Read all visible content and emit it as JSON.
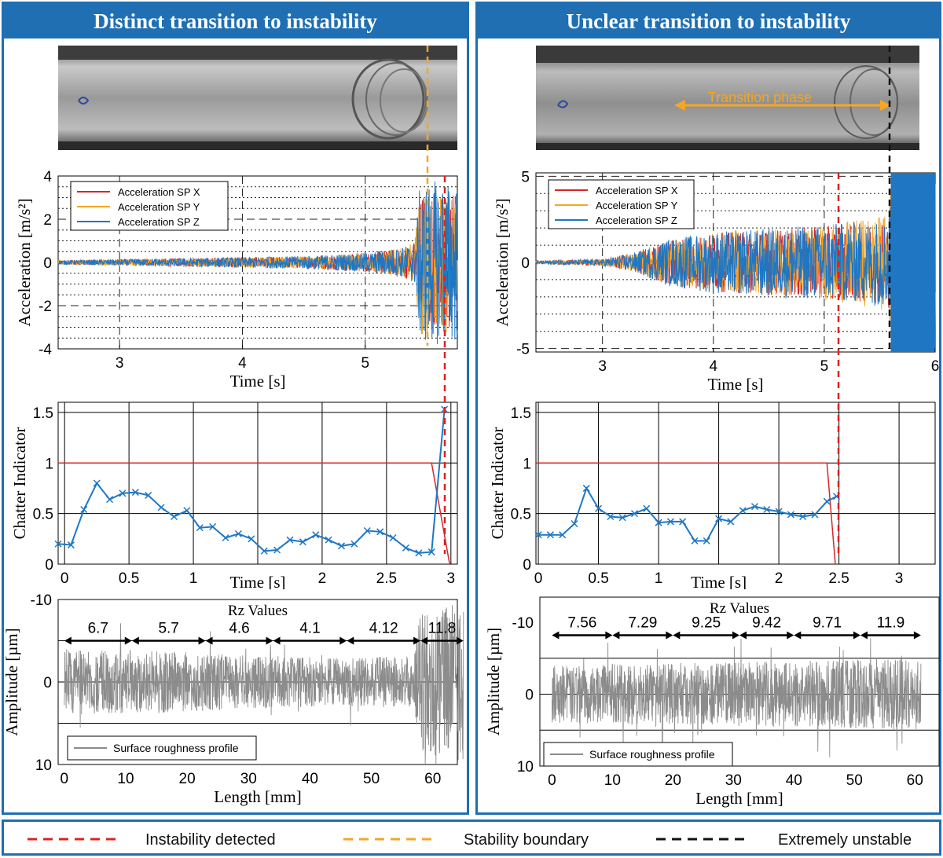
{
  "colors": {
    "accent": "#1f6fb2",
    "accel_x": "#d62728",
    "accel_y": "#f5a623",
    "accel_z": "#1f77c4",
    "chatter_line": "#1f77c4",
    "threshold": "#d62728",
    "profile": "#8c8c8c",
    "instability": "#e02020",
    "stability": "#f5a623",
    "unstable": "#111111"
  },
  "left": {
    "title": "Distinct transition to instability",
    "accel": {
      "ylabel": "Acceleration [m/s²]",
      "xlabel": "Time [s]",
      "ticks_x": [
        "3",
        "4",
        "5"
      ],
      "ticks_y": [
        "4",
        "2",
        "0",
        "-2",
        "-4"
      ],
      "legend": [
        "Acceleration SP X",
        "Acceleration SP Y",
        "Acceleration SP Z"
      ]
    },
    "chatter": {
      "ylabel": "Chatter Indicator",
      "xlabel": "Time [s]",
      "ticks_x": [
        "0",
        "0.5",
        "1",
        "",
        "2",
        "2.5",
        "3"
      ],
      "ticks_y": [
        "1.5",
        "1",
        "0.5",
        "0"
      ]
    },
    "rough": {
      "title": "Rz Values",
      "ylabel": "Amplitude [µm]",
      "xlabel": "Length [mm]",
      "ticks_x": [
        "0",
        "10",
        "20",
        "30",
        "40",
        "50",
        "60"
      ],
      "ticks_y": [
        "-10",
        "0",
        "10"
      ],
      "rz": [
        "6.7",
        "5.7",
        "4.6",
        "4.1",
        "4.12",
        "11.8"
      ],
      "legend": "Surface roughness profile"
    }
  },
  "right": {
    "title": "Unclear transition to instability",
    "photo_label": "Transition phase",
    "accel": {
      "ylabel": "Acceleration [m/s²]",
      "xlabel": "Time [s]",
      "ticks_x": [
        "3",
        "4",
        "5",
        "6"
      ],
      "ticks_y": [
        "5",
        "0",
        "-5"
      ],
      "legend": [
        "Acceleration SP X",
        "Acceleration SP Y",
        "Acceleration SP Z"
      ]
    },
    "chatter": {
      "ylabel": "Chatter Indicator",
      "xlabel": "Time [s]",
      "ticks_x": [
        "0",
        "0.5",
        "1",
        "",
        "2",
        "2.5",
        "3"
      ],
      "ticks_y": [
        "1.5",
        "1",
        "0.5",
        "0"
      ]
    },
    "rough": {
      "title": "Rz Values",
      "ylabel": "Amplitude [µm]",
      "xlabel": "Length [mm]",
      "ticks_x": [
        "0",
        "10",
        "20",
        "30",
        "40",
        "50",
        "60"
      ],
      "ticks_y": [
        "-10",
        "0",
        "10"
      ],
      "rz": [
        "7.56",
        "7.29",
        "9.25",
        "9.42",
        "9.71",
        "11.9"
      ],
      "legend": "Surface roughness profile"
    }
  },
  "bottom_legend": {
    "instability": "Instability detected",
    "stability": "Stability boundary",
    "unstable": "Extremely unstable"
  },
  "chart_data": [
    {
      "type": "line",
      "ylabel": "Acceleration [m/s²]",
      "xlabel": "Time [s]",
      "xlim": [
        2.5,
        5.75
      ],
      "ylim": [
        -4,
        4
      ],
      "series": [
        {
          "name": "Acceleration SP X",
          "envelope_x": [
            2.5,
            3.0,
            3.5,
            4.0,
            4.5,
            5.0,
            5.3,
            5.4,
            5.45,
            5.75
          ],
          "envelope_y": [
            0.1,
            0.15,
            0.2,
            0.25,
            0.3,
            0.45,
            0.7,
            1.0,
            3.5,
            3.5
          ]
        },
        {
          "name": "Acceleration SP Y",
          "envelope_x": [
            2.5,
            3.0,
            3.5,
            4.0,
            4.5,
            5.0,
            5.3,
            5.4,
            5.45,
            5.75
          ],
          "envelope_y": [
            0.1,
            0.15,
            0.2,
            0.25,
            0.3,
            0.45,
            0.7,
            1.0,
            3.5,
            3.5
          ]
        },
        {
          "name": "Acceleration SP Z",
          "envelope_x": [
            2.5,
            3.0,
            3.5,
            4.0,
            4.5,
            5.0,
            5.3,
            5.4,
            5.45,
            5.75
          ],
          "envelope_y": [
            0.1,
            0.15,
            0.2,
            0.25,
            0.3,
            0.45,
            0.7,
            1.0,
            3.8,
            3.8
          ]
        }
      ]
    },
    {
      "type": "line",
      "ylabel": "Chatter Indicator",
      "xlabel": "Time [s]",
      "xlim": [
        -0.05,
        3.05
      ],
      "ylim": [
        0,
        1.6
      ],
      "x": [
        -0.05,
        0.05,
        0.15,
        0.25,
        0.35,
        0.45,
        0.55,
        0.65,
        0.75,
        0.85,
        0.95,
        1.05,
        1.15,
        1.25,
        1.35,
        1.45,
        1.55,
        1.65,
        1.75,
        1.85,
        1.95,
        2.05,
        2.15,
        2.25,
        2.35,
        2.45,
        2.55,
        2.65,
        2.75,
        2.85,
        2.95
      ],
      "series": [
        {
          "values": [
            0.2,
            0.19,
            0.54,
            0.8,
            0.64,
            0.7,
            0.71,
            0.68,
            0.56,
            0.47,
            0.53,
            0.36,
            0.37,
            0.26,
            0.3,
            0.25,
            0.13,
            0.14,
            0.24,
            0.22,
            0.29,
            0.24,
            0.18,
            0.2,
            0.33,
            0.32,
            0.26,
            0.16,
            0.11,
            0.12,
            1.53
          ]
        }
      ],
      "threshold": {
        "x": [
          -0.05,
          2.85,
          2.99
        ],
        "y": [
          1,
          1,
          0
        ]
      }
    },
    {
      "type": "line",
      "title": "Rz Values",
      "ylabel": "Amplitude [µm]",
      "xlabel": "Length [mm]",
      "xlim": [
        -1,
        64
      ],
      "ylim": [
        -10,
        10
      ],
      "segments": [
        [
          0,
          11
        ],
        [
          11,
          23
        ],
        [
          23,
          34
        ],
        [
          34,
          46
        ],
        [
          46,
          58
        ],
        [
          58,
          65
        ]
      ],
      "rz": [
        6.7,
        5.7,
        4.6,
        4.1,
        4.12,
        11.8
      ],
      "series": [
        {
          "name": "Surface roughness profile"
        }
      ]
    },
    {
      "type": "line",
      "ylabel": "Acceleration [m/s²]",
      "xlabel": "Time [s]",
      "xlim": [
        2.4,
        6.0
      ],
      "ylim": [
        -5.2,
        5.2
      ],
      "series": [
        {
          "name": "Acceleration SP X",
          "envelope_x": [
            2.4,
            3.0,
            3.3,
            3.6,
            4.0,
            4.5,
            5.0,
            5.3,
            5.58,
            5.6,
            6.0
          ],
          "envelope_y": [
            0.1,
            0.2,
            0.6,
            1.4,
            1.8,
            2.0,
            2.2,
            2.4,
            2.6,
            5.2,
            5.2
          ]
        },
        {
          "name": "Acceleration SP Y",
          "envelope_x": [
            2.4,
            3.0,
            3.3,
            3.6,
            4.0,
            4.5,
            5.0,
            5.3,
            5.58,
            5.6,
            6.0
          ],
          "envelope_y": [
            0.1,
            0.2,
            0.6,
            1.4,
            1.8,
            2.0,
            2.3,
            2.6,
            3.0,
            5.2,
            5.2
          ]
        },
        {
          "name": "Acceleration SP Z",
          "envelope_x": [
            2.4,
            3.0,
            3.3,
            3.6,
            4.0,
            4.5,
            5.0,
            5.3,
            5.58,
            5.6,
            6.0
          ],
          "envelope_y": [
            0.1,
            0.2,
            0.6,
            1.4,
            1.8,
            2.0,
            2.2,
            2.4,
            2.6,
            5.2,
            5.2
          ]
        }
      ]
    },
    {
      "type": "line",
      "ylabel": "Chatter Indicator",
      "xlabel": "Time [s]",
      "xlim": [
        -0.02,
        3.3
      ],
      "ylim": [
        0,
        1.6
      ],
      "x": [
        0.0,
        0.1,
        0.2,
        0.3,
        0.4,
        0.5,
        0.6,
        0.7,
        0.8,
        0.9,
        1.0,
        1.1,
        1.2,
        1.3,
        1.4,
        1.5,
        1.6,
        1.7,
        1.8,
        1.9,
        2.0,
        2.1,
        2.2,
        2.3,
        2.4,
        2.48
      ],
      "series": [
        {
          "values": [
            0.29,
            0.29,
            0.29,
            0.4,
            0.75,
            0.55,
            0.47,
            0.46,
            0.5,
            0.55,
            0.41,
            0.42,
            0.42,
            0.23,
            0.23,
            0.45,
            0.42,
            0.53,
            0.57,
            0.54,
            0.52,
            0.49,
            0.47,
            0.49,
            0.62,
            0.67
          ]
        }
      ],
      "threshold": {
        "x": [
          -0.02,
          2.4,
          2.47
        ],
        "y": [
          1,
          1,
          0
        ]
      }
    },
    {
      "type": "line",
      "title": "Rz Values",
      "ylabel": "Amplitude [µm]",
      "xlabel": "Length [mm]",
      "xlim": [
        -2,
        64
      ],
      "ylim": [
        -13.5,
        10
      ],
      "segments": [
        [
          0,
          10
        ],
        [
          10,
          20
        ],
        [
          20,
          31
        ],
        [
          31,
          40
        ],
        [
          40,
          51
        ],
        [
          51,
          61
        ]
      ],
      "rz": [
        7.56,
        7.29,
        9.25,
        9.42,
        9.71,
        11.9
      ],
      "series": [
        {
          "name": "Surface roughness profile"
        }
      ]
    }
  ]
}
